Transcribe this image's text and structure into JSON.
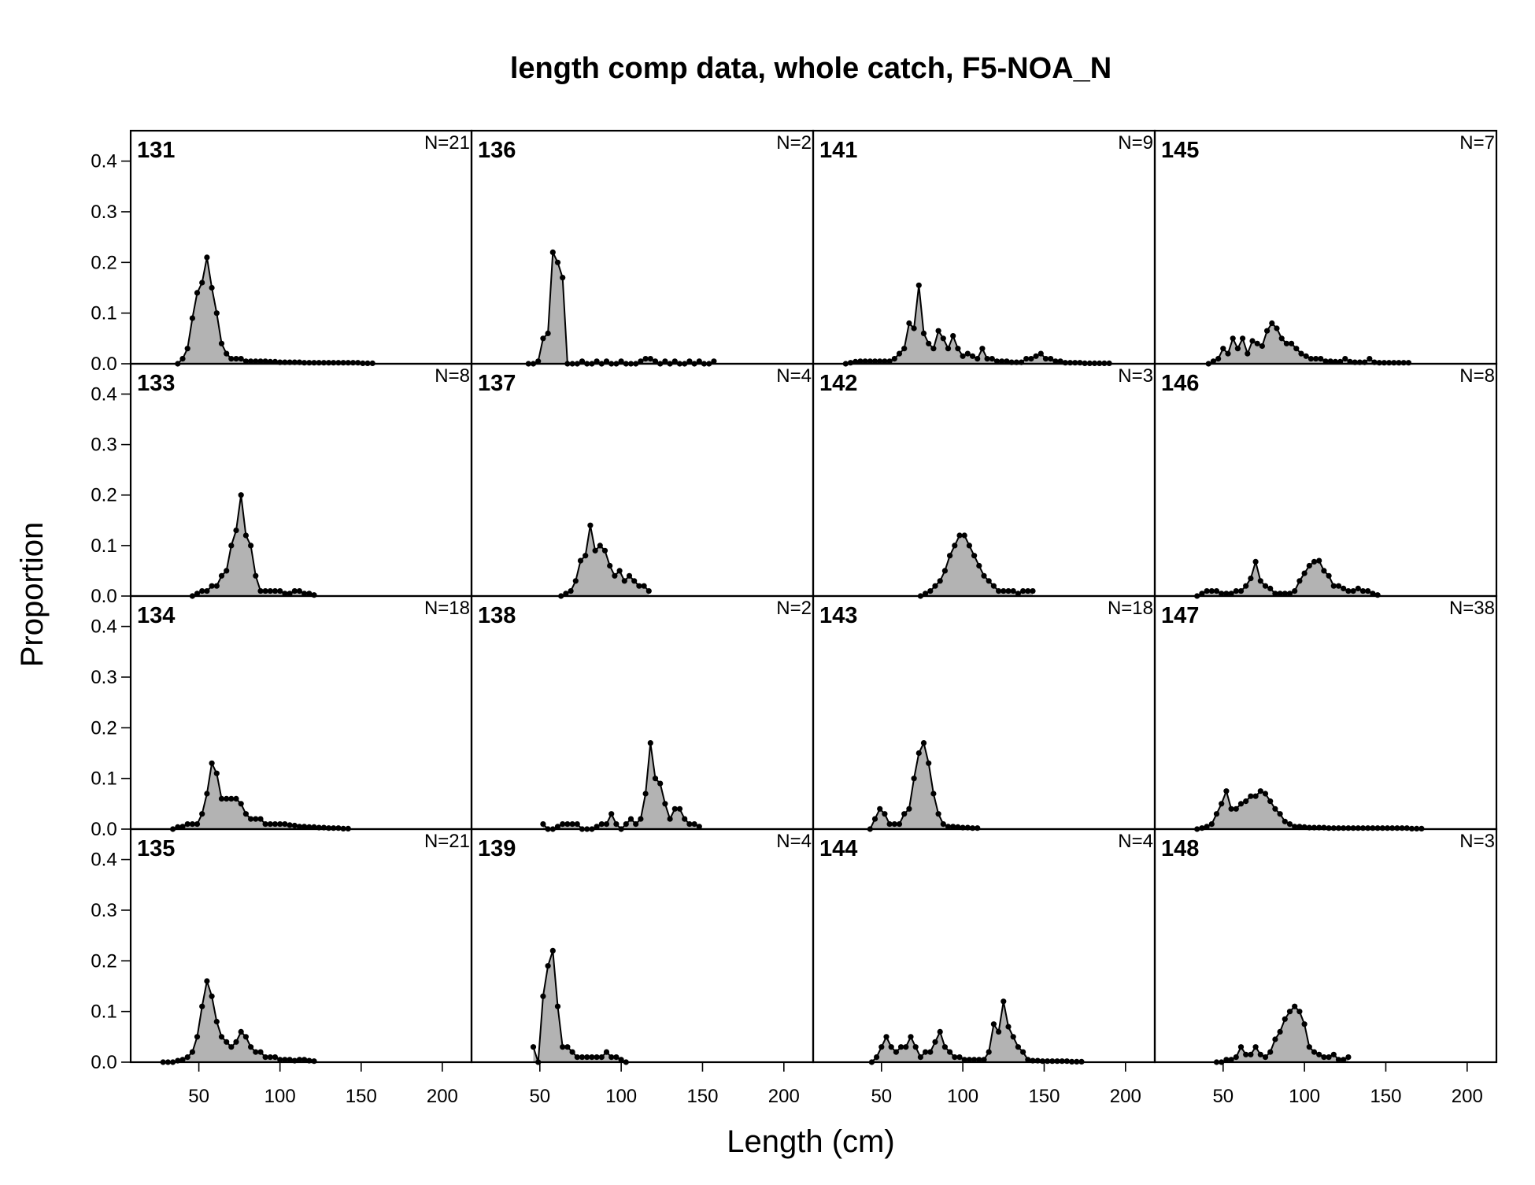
{
  "chart_data": {
    "type": "area",
    "title": "length comp data, whole catch, F5-NOA_N",
    "xlabel": "Length (cm)",
    "ylabel": "Proportion",
    "xlim": [
      8,
      218
    ],
    "ylim": [
      0,
      0.46
    ],
    "x_ticks": [
      50,
      100,
      150,
      200
    ],
    "y_ticks": [
      0.0,
      0.1,
      0.2,
      0.3,
      0.4
    ],
    "x_tick_labels": [
      "50",
      "100",
      "150",
      "200"
    ],
    "y_tick_labels": [
      "0.0",
      "0.1",
      "0.2",
      "0.3",
      "0.4"
    ],
    "bin_width": 3,
    "layout": "4 columns x 4 rows, filled column-wise",
    "colors": {
      "fill": "#b3b3b3",
      "line": "#000000"
    },
    "panels": [
      {
        "label": "131",
        "n_label": "N=21",
        "x_start": 37,
        "values": [
          0,
          0.01,
          0.03,
          0.09,
          0.14,
          0.16,
          0.21,
          0.15,
          0.1,
          0.04,
          0.02,
          0.01,
          0.01,
          0.01,
          0.005,
          0.005,
          0.005,
          0.005,
          0.005,
          0.004,
          0.004,
          0.003,
          0.003,
          0.003,
          0.003,
          0.003,
          0.002,
          0.002,
          0.002,
          0.002,
          0.002,
          0.002,
          0.002,
          0.002,
          0.002,
          0.002,
          0.002,
          0.002,
          0.001,
          0.001,
          0.001
        ]
      },
      {
        "label": "133",
        "n_label": "N=8",
        "x_start": 46,
        "values": [
          0,
          0.005,
          0.01,
          0.01,
          0.02,
          0.02,
          0.04,
          0.05,
          0.1,
          0.13,
          0.2,
          0.12,
          0.1,
          0.04,
          0.01,
          0.01,
          0.01,
          0.01,
          0.01,
          0.005,
          0.005,
          0.01,
          0.01,
          0.005,
          0.005,
          0.002
        ]
      },
      {
        "label": "134",
        "n_label": "N=18",
        "x_start": 34,
        "values": [
          0,
          0.004,
          0.005,
          0.01,
          0.01,
          0.01,
          0.03,
          0.07,
          0.13,
          0.11,
          0.06,
          0.06,
          0.06,
          0.06,
          0.05,
          0.03,
          0.02,
          0.02,
          0.02,
          0.01,
          0.01,
          0.01,
          0.01,
          0.01,
          0.008,
          0.007,
          0.005,
          0.005,
          0.004,
          0.004,
          0.003,
          0.003,
          0.002,
          0.002,
          0.002,
          0.001,
          0.001
        ]
      },
      {
        "label": "135",
        "n_label": "N=21",
        "x_start": 28,
        "values": [
          0,
          0,
          0,
          0.003,
          0.005,
          0.01,
          0.02,
          0.05,
          0.11,
          0.16,
          0.13,
          0.08,
          0.05,
          0.04,
          0.03,
          0.04,
          0.06,
          0.05,
          0.03,
          0.02,
          0.02,
          0.01,
          0.01,
          0.01,
          0.005,
          0.005,
          0.005,
          0.003,
          0.005,
          0.005,
          0.003,
          0.002
        ]
      },
      {
        "label": "136",
        "n_label": "N=2",
        "x_start": 43,
        "values": [
          0,
          0,
          0.005,
          0.05,
          0.06,
          0.22,
          0.2,
          0.17,
          0,
          0,
          0,
          0.005,
          0,
          0,
          0.005,
          0,
          0.005,
          0,
          0,
          0.005,
          0,
          0,
          0,
          0.005,
          0.01,
          0.01,
          0.005,
          0,
          0.005,
          0,
          0.005,
          0,
          0,
          0.005,
          0,
          0.005,
          0,
          0,
          0.005
        ]
      },
      {
        "label": "137",
        "n_label": "N=4",
        "x_start": 63,
        "values": [
          0,
          0.005,
          0.01,
          0.03,
          0.07,
          0.08,
          0.14,
          0.09,
          0.1,
          0.09,
          0.06,
          0.04,
          0.05,
          0.03,
          0.04,
          0.03,
          0.02,
          0.02,
          0.01
        ]
      },
      {
        "label": "138",
        "n_label": "N=2",
        "x_start": 52,
        "values": [
          0.01,
          0,
          0,
          0.005,
          0.01,
          0.01,
          0.01,
          0.01,
          0,
          0,
          0,
          0.005,
          0.01,
          0.01,
          0.03,
          0.01,
          0,
          0.01,
          0.02,
          0.01,
          0.02,
          0.07,
          0.17,
          0.1,
          0.09,
          0.05,
          0.02,
          0.04,
          0.04,
          0.02,
          0.01,
          0.01,
          0.005
        ]
      },
      {
        "label": "139",
        "n_label": "N=4",
        "x_start": 46,
        "values": [
          0.03,
          0,
          0.13,
          0.19,
          0.22,
          0.11,
          0.03,
          0.03,
          0.02,
          0.01,
          0.01,
          0.01,
          0.01,
          0.01,
          0.01,
          0.02,
          0.01,
          0.01,
          0.005,
          0
        ]
      },
      {
        "label": "141",
        "n_label": "N=9",
        "x_start": 28,
        "values": [
          0,
          0.002,
          0.004,
          0.005,
          0.005,
          0.005,
          0.005,
          0.005,
          0.005,
          0.005,
          0.01,
          0.02,
          0.03,
          0.08,
          0.07,
          0.155,
          0.06,
          0.04,
          0.03,
          0.065,
          0.05,
          0.03,
          0.055,
          0.03,
          0.015,
          0.02,
          0.015,
          0.01,
          0.03,
          0.01,
          0.01,
          0.005,
          0.005,
          0.005,
          0.003,
          0.003,
          0.003,
          0.01,
          0.01,
          0.015,
          0.02,
          0.01,
          0.01,
          0.005,
          0.005,
          0.002,
          0.002,
          0.002,
          0.002,
          0.001,
          0.001,
          0.001,
          0.001,
          0.001,
          0.001
        ]
      },
      {
        "label": "142",
        "n_label": "N=3",
        "x_start": 74,
        "values": [
          0,
          0.005,
          0.01,
          0.02,
          0.03,
          0.05,
          0.08,
          0.1,
          0.12,
          0.12,
          0.1,
          0.08,
          0.06,
          0.04,
          0.03,
          0.02,
          0.01,
          0.01,
          0.01,
          0.01,
          0.005,
          0.01,
          0.01,
          0.01
        ]
      },
      {
        "label": "143",
        "n_label": "N=18",
        "x_start": 43,
        "values": [
          0,
          0.02,
          0.04,
          0.03,
          0.01,
          0.01,
          0.01,
          0.03,
          0.04,
          0.1,
          0.15,
          0.17,
          0.13,
          0.07,
          0.03,
          0.01,
          0.005,
          0.005,
          0.004,
          0.003,
          0.003,
          0.002,
          0.002
        ]
      },
      {
        "label": "144",
        "n_label": "N=4",
        "x_start": 44,
        "values": [
          0,
          0.01,
          0.03,
          0.05,
          0.03,
          0.02,
          0.03,
          0.03,
          0.05,
          0.03,
          0.01,
          0.02,
          0.02,
          0.04,
          0.06,
          0.03,
          0.02,
          0.01,
          0.01,
          0.005,
          0.005,
          0.005,
          0.005,
          0.005,
          0.02,
          0.075,
          0.06,
          0.12,
          0.07,
          0.05,
          0.03,
          0.02,
          0.005,
          0.003,
          0.003,
          0.002,
          0.002,
          0.002,
          0.002,
          0.002,
          0.002,
          0.001,
          0.001,
          0.001
        ]
      },
      {
        "label": "145",
        "n_label": "N=7",
        "x_start": 41,
        "values": [
          0,
          0.005,
          0.01,
          0.03,
          0.02,
          0.05,
          0.03,
          0.05,
          0.02,
          0.045,
          0.04,
          0.035,
          0.065,
          0.08,
          0.07,
          0.05,
          0.04,
          0.04,
          0.03,
          0.02,
          0.015,
          0.01,
          0.01,
          0.01,
          0.005,
          0.005,
          0.004,
          0.004,
          0.01,
          0.004,
          0.003,
          0.003,
          0.003,
          0.01,
          0.003,
          0.002,
          0.002,
          0.002,
          0.002,
          0.002,
          0.002,
          0.002
        ]
      },
      {
        "label": "146",
        "n_label": "N=8",
        "x_start": 34,
        "values": [
          0,
          0.005,
          0.01,
          0.01,
          0.01,
          0.005,
          0.005,
          0.005,
          0.01,
          0.01,
          0.02,
          0.035,
          0.068,
          0.03,
          0.02,
          0.015,
          0.005,
          0.005,
          0.005,
          0.005,
          0.01,
          0.03,
          0.045,
          0.06,
          0.068,
          0.07,
          0.05,
          0.04,
          0.02,
          0.02,
          0.015,
          0.01,
          0.01,
          0.015,
          0.01,
          0.01,
          0.005,
          0.002
        ]
      },
      {
        "label": "147",
        "n_label": "N=38",
        "x_start": 34,
        "values": [
          0,
          0.002,
          0.005,
          0.01,
          0.03,
          0.05,
          0.075,
          0.04,
          0.04,
          0.05,
          0.055,
          0.065,
          0.065,
          0.075,
          0.07,
          0.055,
          0.04,
          0.03,
          0.015,
          0.01,
          0.005,
          0.005,
          0.004,
          0.003,
          0.003,
          0.003,
          0.003,
          0.002,
          0.002,
          0.002,
          0.002,
          0.002,
          0.002,
          0.002,
          0.002,
          0.002,
          0.002,
          0.002,
          0.002,
          0.002,
          0.002,
          0.002,
          0.002,
          0.002,
          0.001,
          0.001,
          0.001
        ]
      },
      {
        "label": "148",
        "n_label": "N=3",
        "x_start": 46,
        "values": [
          0,
          0,
          0.005,
          0.005,
          0.01,
          0.03,
          0.015,
          0.015,
          0.03,
          0.015,
          0.01,
          0.02,
          0.045,
          0.06,
          0.085,
          0.1,
          0.11,
          0.1,
          0.075,
          0.03,
          0.02,
          0.015,
          0.01,
          0.01,
          0.015,
          0.005,
          0.005,
          0.01
        ]
      }
    ]
  }
}
